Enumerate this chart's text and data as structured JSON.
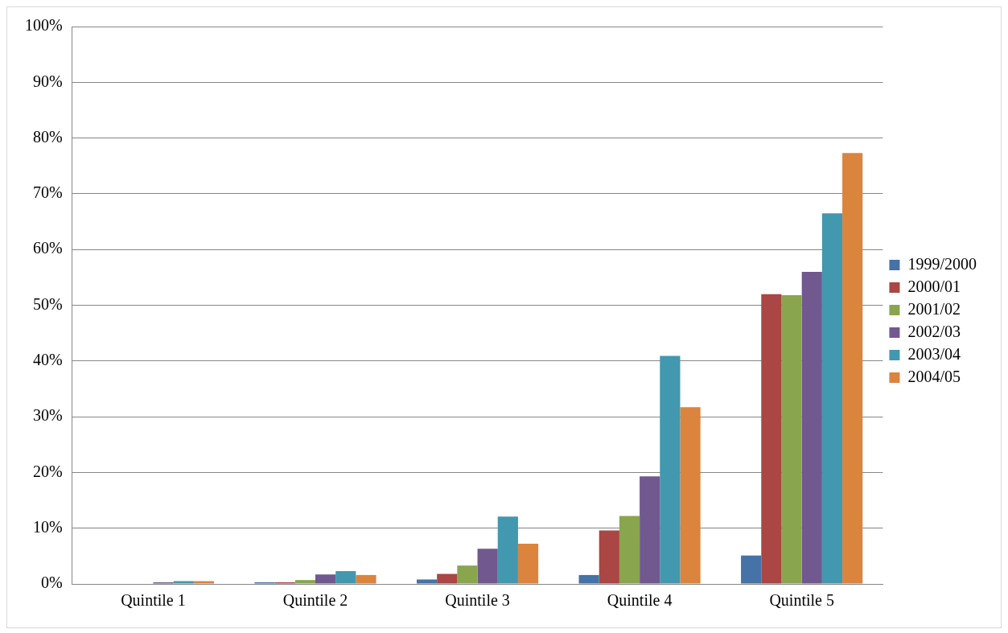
{
  "chart_data": {
    "type": "bar",
    "categories": [
      "Quintile 1",
      "Quintile 2",
      "Quintile 3",
      "Quintile 4",
      "Quintile 5"
    ],
    "series": [
      {
        "name": "1999/2000",
        "color": "#4572a7",
        "values": [
          0,
          0.3,
          0.8,
          1.6,
          5.1
        ]
      },
      {
        "name": "2000/01",
        "color": "#aa4643",
        "values": [
          0,
          0.3,
          1.8,
          9.6,
          52
        ]
      },
      {
        "name": "2001/02",
        "color": "#89a54e",
        "values": [
          0,
          0.7,
          3.3,
          12.2,
          51.8
        ]
      },
      {
        "name": "2002/03",
        "color": "#71588f",
        "values": [
          0.3,
          1.7,
          6.3,
          19.3,
          56
        ]
      },
      {
        "name": "2003/04",
        "color": "#4198af",
        "values": [
          0.5,
          2.3,
          12.1,
          40.9,
          66.5
        ]
      },
      {
        "name": "2004/05",
        "color": "#db843d",
        "values": [
          0.5,
          1.6,
          7.2,
          31.7,
          77.3
        ]
      }
    ],
    "ylim": [
      0,
      100
    ],
    "yticks": [
      {
        "value": 0,
        "label": "0%"
      },
      {
        "value": 10,
        "label": "10%"
      },
      {
        "value": 20,
        "label": "20%"
      },
      {
        "value": 30,
        "label": "30%"
      },
      {
        "value": 40,
        "label": "40%"
      },
      {
        "value": 50,
        "label": "50%"
      },
      {
        "value": 60,
        "label": "60%"
      },
      {
        "value": 70,
        "label": "70%"
      },
      {
        "value": 80,
        "label": "80%"
      },
      {
        "value": 90,
        "label": "90%"
      },
      {
        "value": 100,
        "label": "100%"
      }
    ],
    "grid": "y",
    "legend": "right"
  }
}
